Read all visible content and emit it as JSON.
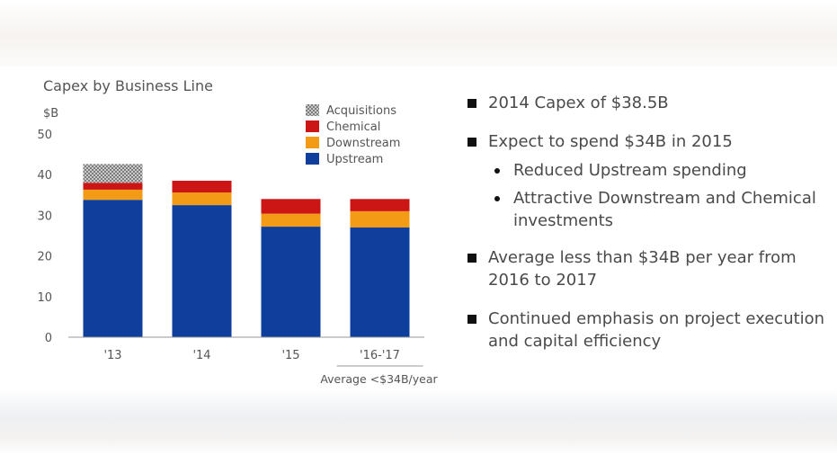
{
  "chart_data": {
    "type": "bar",
    "stacked": true,
    "title": "Capex by Business Line",
    "ylabel": "$B",
    "ylim": [
      0,
      50
    ],
    "yticks": [
      0,
      10,
      20,
      30,
      40,
      50
    ],
    "grid": false,
    "categories": [
      "'13",
      "'14",
      "'15",
      "'16-'17"
    ],
    "series": [
      {
        "name": "Upstream",
        "color": "#0f3f9c",
        "values": [
          33.8,
          32.5,
          27.2,
          27.0
        ]
      },
      {
        "name": "Downstream",
        "color": "#f39a16",
        "values": [
          2.5,
          3.1,
          3.2,
          4.0
        ]
      },
      {
        "name": "Chemical",
        "color": "#cc1616",
        "values": [
          1.7,
          2.9,
          3.6,
          3.0
        ]
      },
      {
        "name": "Acquisitions",
        "color": "#a9a9a9",
        "pattern": "hatch",
        "values": [
          4.6,
          0,
          0,
          0
        ]
      }
    ],
    "legend": {
      "placement": "top-right",
      "order": [
        "Acquisitions",
        "Chemical",
        "Downstream",
        "Upstream"
      ]
    },
    "annotation": {
      "text": "Average <$34B/year",
      "category": "'16-'17"
    }
  },
  "bullets": [
    {
      "text": "2014 Capex of $38.5B",
      "subs": []
    },
    {
      "text": "Expect to spend $34B in 2015",
      "subs": [
        "Reduced Upstream spending",
        "Attractive Downstream and Chemical investments"
      ]
    },
    {
      "text": "Average less than $34B per year from 2016 to 2017",
      "subs": []
    },
    {
      "text": "Continued emphasis on project execution and capital efficiency",
      "subs": []
    }
  ]
}
